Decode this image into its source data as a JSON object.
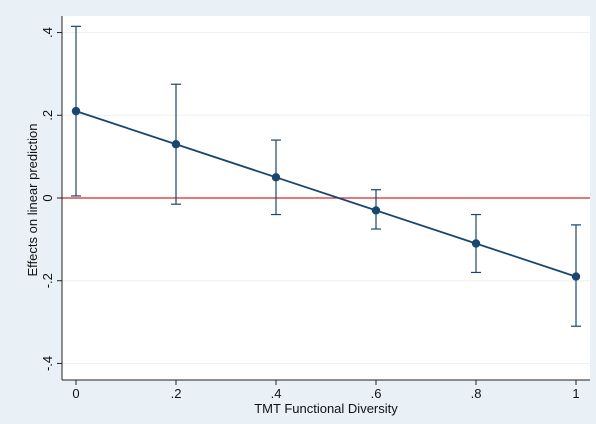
{
  "chart_data": {
    "type": "line",
    "title": "",
    "xlabel": "TMT Functional Diversity",
    "ylabel": "Effects on linear prediction",
    "x_ticks": [
      0,
      0.2,
      0.4,
      0.6,
      0.8,
      1
    ],
    "x_tick_labels": [
      "0",
      ".2",
      ".4",
      ".6",
      ".8",
      "1"
    ],
    "y_ticks": [
      -0.4,
      -0.2,
      0,
      0.2,
      0.4
    ],
    "y_tick_labels": [
      "-.4",
      "-.2",
      "0",
      ".2",
      ".4"
    ],
    "xlim": [
      0,
      1
    ],
    "ylim": [
      -0.44,
      0.44
    ],
    "grid": true,
    "reference_line": {
      "y": 0,
      "color": "#d62728"
    },
    "series": [
      {
        "x": [
          0,
          0.2,
          0.4,
          0.6,
          0.8,
          1
        ],
        "y": [
          0.21,
          0.13,
          0.05,
          -0.03,
          -0.11,
          -0.19
        ],
        "ci_low": [
          0.005,
          -0.015,
          -0.04,
          -0.075,
          -0.18,
          -0.31
        ],
        "ci_high": [
          0.415,
          0.275,
          0.14,
          0.02,
          -0.04,
          -0.065
        ]
      }
    ],
    "colors": {
      "line": "#1a476f",
      "marker": "#1a476f",
      "errorbar": "#1a476f",
      "reference": "#d62728",
      "grid": "#eaf2f3",
      "plot_bg": "#ffffff",
      "outer_bg": "#e9f1f7"
    }
  }
}
